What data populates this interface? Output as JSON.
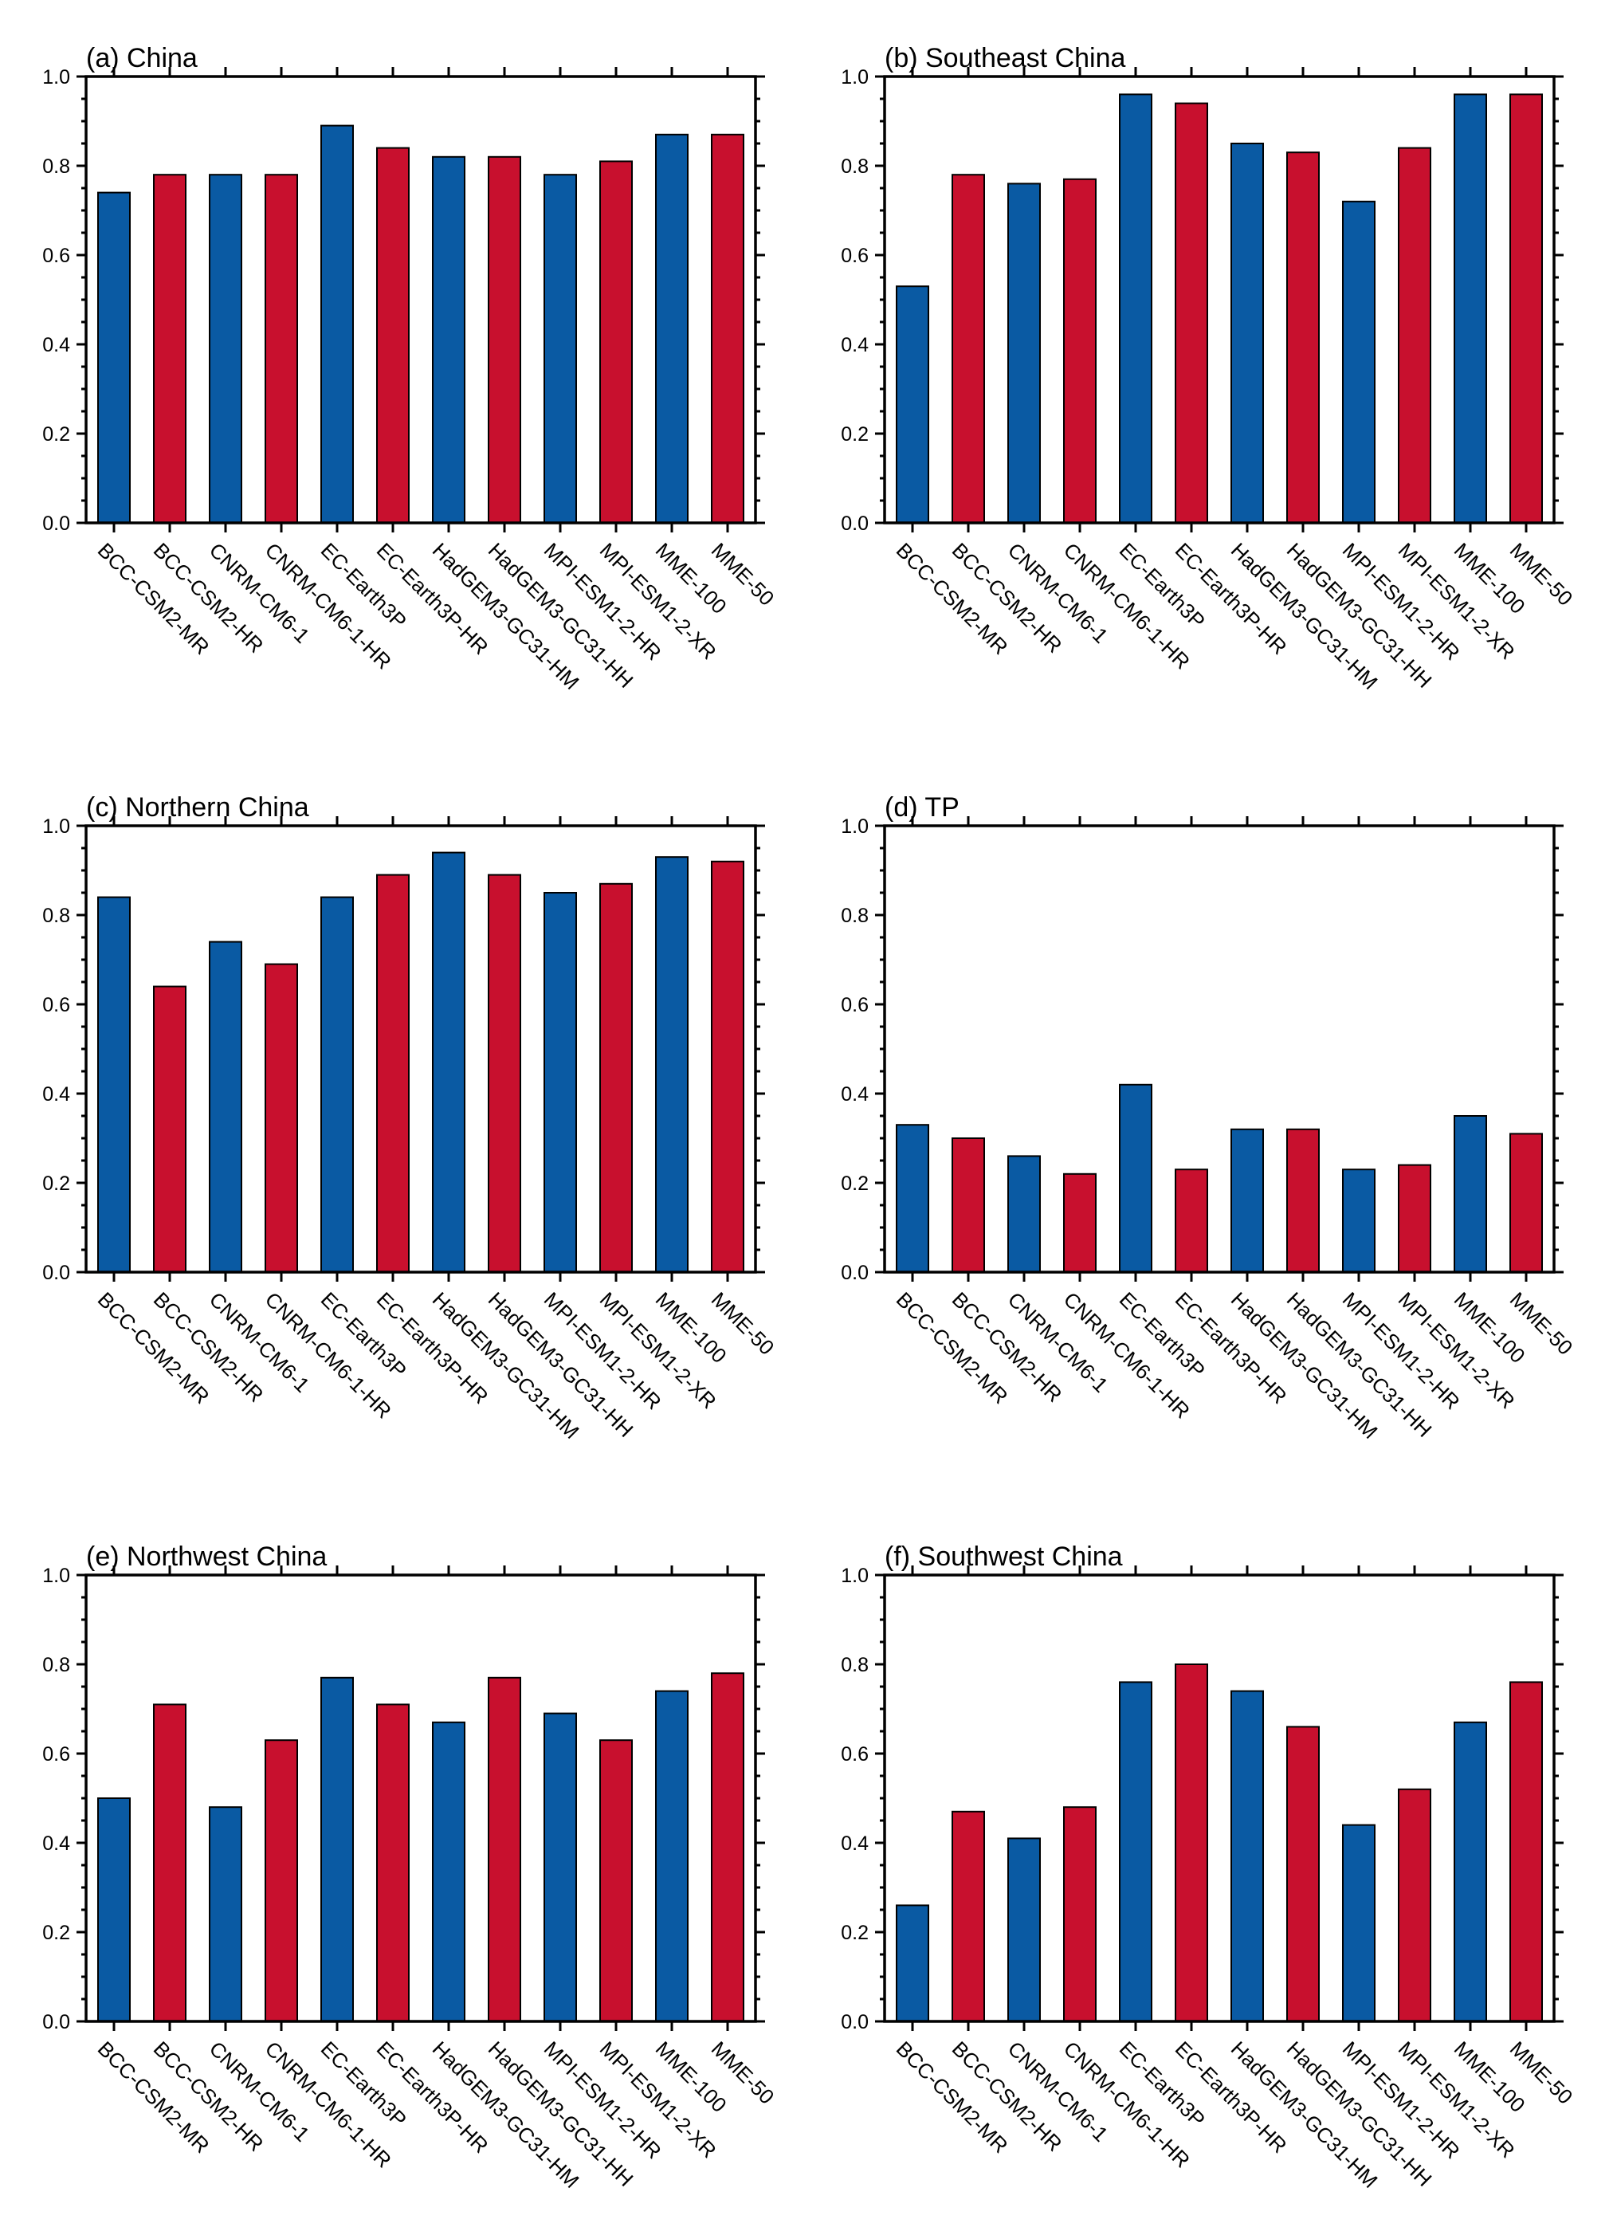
{
  "colors": {
    "blue": "#0a5aa3",
    "red": "#c8102e"
  },
  "chart_data": [
    {
      "type": "bar",
      "title": "(a) China",
      "categories": [
        "BCC-CSM2-MR",
        "BCC-CSM2-HR",
        "CNRM-CM6-1",
        "CNRM-CM6-1-HR",
        "EC-Earth3P",
        "EC-Earth3P-HR",
        "HadGEM3-GC31-HM",
        "HadGEM3-GC31-HH",
        "MPI-ESM1-2-HR",
        "MPI-ESM1-2-XR",
        "MME-100",
        "MME-50"
      ],
      "values": [
        0.74,
        0.78,
        0.78,
        0.78,
        0.89,
        0.84,
        0.82,
        0.82,
        0.78,
        0.81,
        0.87,
        0.87
      ],
      "bar_colors": [
        "blue",
        "red",
        "blue",
        "red",
        "blue",
        "red",
        "blue",
        "red",
        "blue",
        "red",
        "blue",
        "red"
      ],
      "ylim": [
        0,
        1.0
      ],
      "yticks": [
        "0.0",
        "0.2",
        "0.4",
        "0.6",
        "0.8",
        "1.0"
      ],
      "xlabel": "",
      "ylabel": ""
    },
    {
      "type": "bar",
      "title": "(b) Southeast China",
      "categories": [
        "BCC-CSM2-MR",
        "BCC-CSM2-HR",
        "CNRM-CM6-1",
        "CNRM-CM6-1-HR",
        "EC-Earth3P",
        "EC-Earth3P-HR",
        "HadGEM3-GC31-HM",
        "HadGEM3-GC31-HH",
        "MPI-ESM1-2-HR",
        "MPI-ESM1-2-XR",
        "MME-100",
        "MME-50"
      ],
      "values": [
        0.53,
        0.78,
        0.76,
        0.77,
        0.96,
        0.94,
        0.85,
        0.83,
        0.72,
        0.84,
        0.96,
        0.96
      ],
      "bar_colors": [
        "blue",
        "red",
        "blue",
        "red",
        "blue",
        "red",
        "blue",
        "red",
        "blue",
        "red",
        "blue",
        "red"
      ],
      "ylim": [
        0,
        1.0
      ],
      "yticks": [
        "0.0",
        "0.2",
        "0.4",
        "0.6",
        "0.8",
        "1.0"
      ],
      "xlabel": "",
      "ylabel": ""
    },
    {
      "type": "bar",
      "title": "(c) Northern China",
      "categories": [
        "BCC-CSM2-MR",
        "BCC-CSM2-HR",
        "CNRM-CM6-1",
        "CNRM-CM6-1-HR",
        "EC-Earth3P",
        "EC-Earth3P-HR",
        "HadGEM3-GC31-HM",
        "HadGEM3-GC31-HH",
        "MPI-ESM1-2-HR",
        "MPI-ESM1-2-XR",
        "MME-100",
        "MME-50"
      ],
      "values": [
        0.84,
        0.64,
        0.74,
        0.69,
        0.84,
        0.89,
        0.94,
        0.89,
        0.85,
        0.87,
        0.93,
        0.92
      ],
      "bar_colors": [
        "blue",
        "red",
        "blue",
        "red",
        "blue",
        "red",
        "blue",
        "red",
        "blue",
        "red",
        "blue",
        "red"
      ],
      "ylim": [
        0,
        1.0
      ],
      "yticks": [
        "0.0",
        "0.2",
        "0.4",
        "0.6",
        "0.8",
        "1.0"
      ],
      "xlabel": "",
      "ylabel": ""
    },
    {
      "type": "bar",
      "title": "(d) TP",
      "categories": [
        "BCC-CSM2-MR",
        "BCC-CSM2-HR",
        "CNRM-CM6-1",
        "CNRM-CM6-1-HR",
        "EC-Earth3P",
        "EC-Earth3P-HR",
        "HadGEM3-GC31-HM",
        "HadGEM3-GC31-HH",
        "MPI-ESM1-2-HR",
        "MPI-ESM1-2-XR",
        "MME-100",
        "MME-50"
      ],
      "values": [
        0.33,
        0.3,
        0.26,
        0.22,
        0.42,
        0.23,
        0.32,
        0.32,
        0.23,
        0.24,
        0.35,
        0.31
      ],
      "bar_colors": [
        "blue",
        "red",
        "blue",
        "red",
        "blue",
        "red",
        "blue",
        "red",
        "blue",
        "red",
        "blue",
        "red"
      ],
      "ylim": [
        0,
        1.0
      ],
      "yticks": [
        "0.0",
        "0.2",
        "0.4",
        "0.6",
        "0.8",
        "1.0"
      ],
      "xlabel": "",
      "ylabel": ""
    },
    {
      "type": "bar",
      "title": "(e) Northwest China",
      "categories": [
        "BCC-CSM2-MR",
        "BCC-CSM2-HR",
        "CNRM-CM6-1",
        "CNRM-CM6-1-HR",
        "EC-Earth3P",
        "EC-Earth3P-HR",
        "HadGEM3-GC31-HM",
        "HadGEM3-GC31-HH",
        "MPI-ESM1-2-HR",
        "MPI-ESM1-2-XR",
        "MME-100",
        "MME-50"
      ],
      "values": [
        0.5,
        0.71,
        0.48,
        0.63,
        0.77,
        0.71,
        0.67,
        0.77,
        0.69,
        0.63,
        0.74,
        0.78
      ],
      "bar_colors": [
        "blue",
        "red",
        "blue",
        "red",
        "blue",
        "red",
        "blue",
        "red",
        "blue",
        "red",
        "blue",
        "red"
      ],
      "ylim": [
        0,
        1.0
      ],
      "yticks": [
        "0.0",
        "0.2",
        "0.4",
        "0.6",
        "0.8",
        "1.0"
      ],
      "xlabel": "",
      "ylabel": ""
    },
    {
      "type": "bar",
      "title": "(f) Southwest China",
      "categories": [
        "BCC-CSM2-MR",
        "BCC-CSM2-HR",
        "CNRM-CM6-1",
        "CNRM-CM6-1-HR",
        "EC-Earth3P",
        "EC-Earth3P-HR",
        "HadGEM3-GC31-HM",
        "HadGEM3-GC31-HH",
        "MPI-ESM1-2-HR",
        "MPI-ESM1-2-XR",
        "MME-100",
        "MME-50"
      ],
      "values": [
        0.26,
        0.47,
        0.41,
        0.48,
        0.76,
        0.8,
        0.74,
        0.66,
        0.44,
        0.52,
        0.67,
        0.76
      ],
      "bar_colors": [
        "blue",
        "red",
        "blue",
        "red",
        "blue",
        "red",
        "blue",
        "red",
        "blue",
        "red",
        "blue",
        "red"
      ],
      "ylim": [
        0,
        1.0
      ],
      "yticks": [
        "0.0",
        "0.2",
        "0.4",
        "0.6",
        "0.8",
        "1.0"
      ],
      "xlabel": "",
      "ylabel": ""
    }
  ]
}
